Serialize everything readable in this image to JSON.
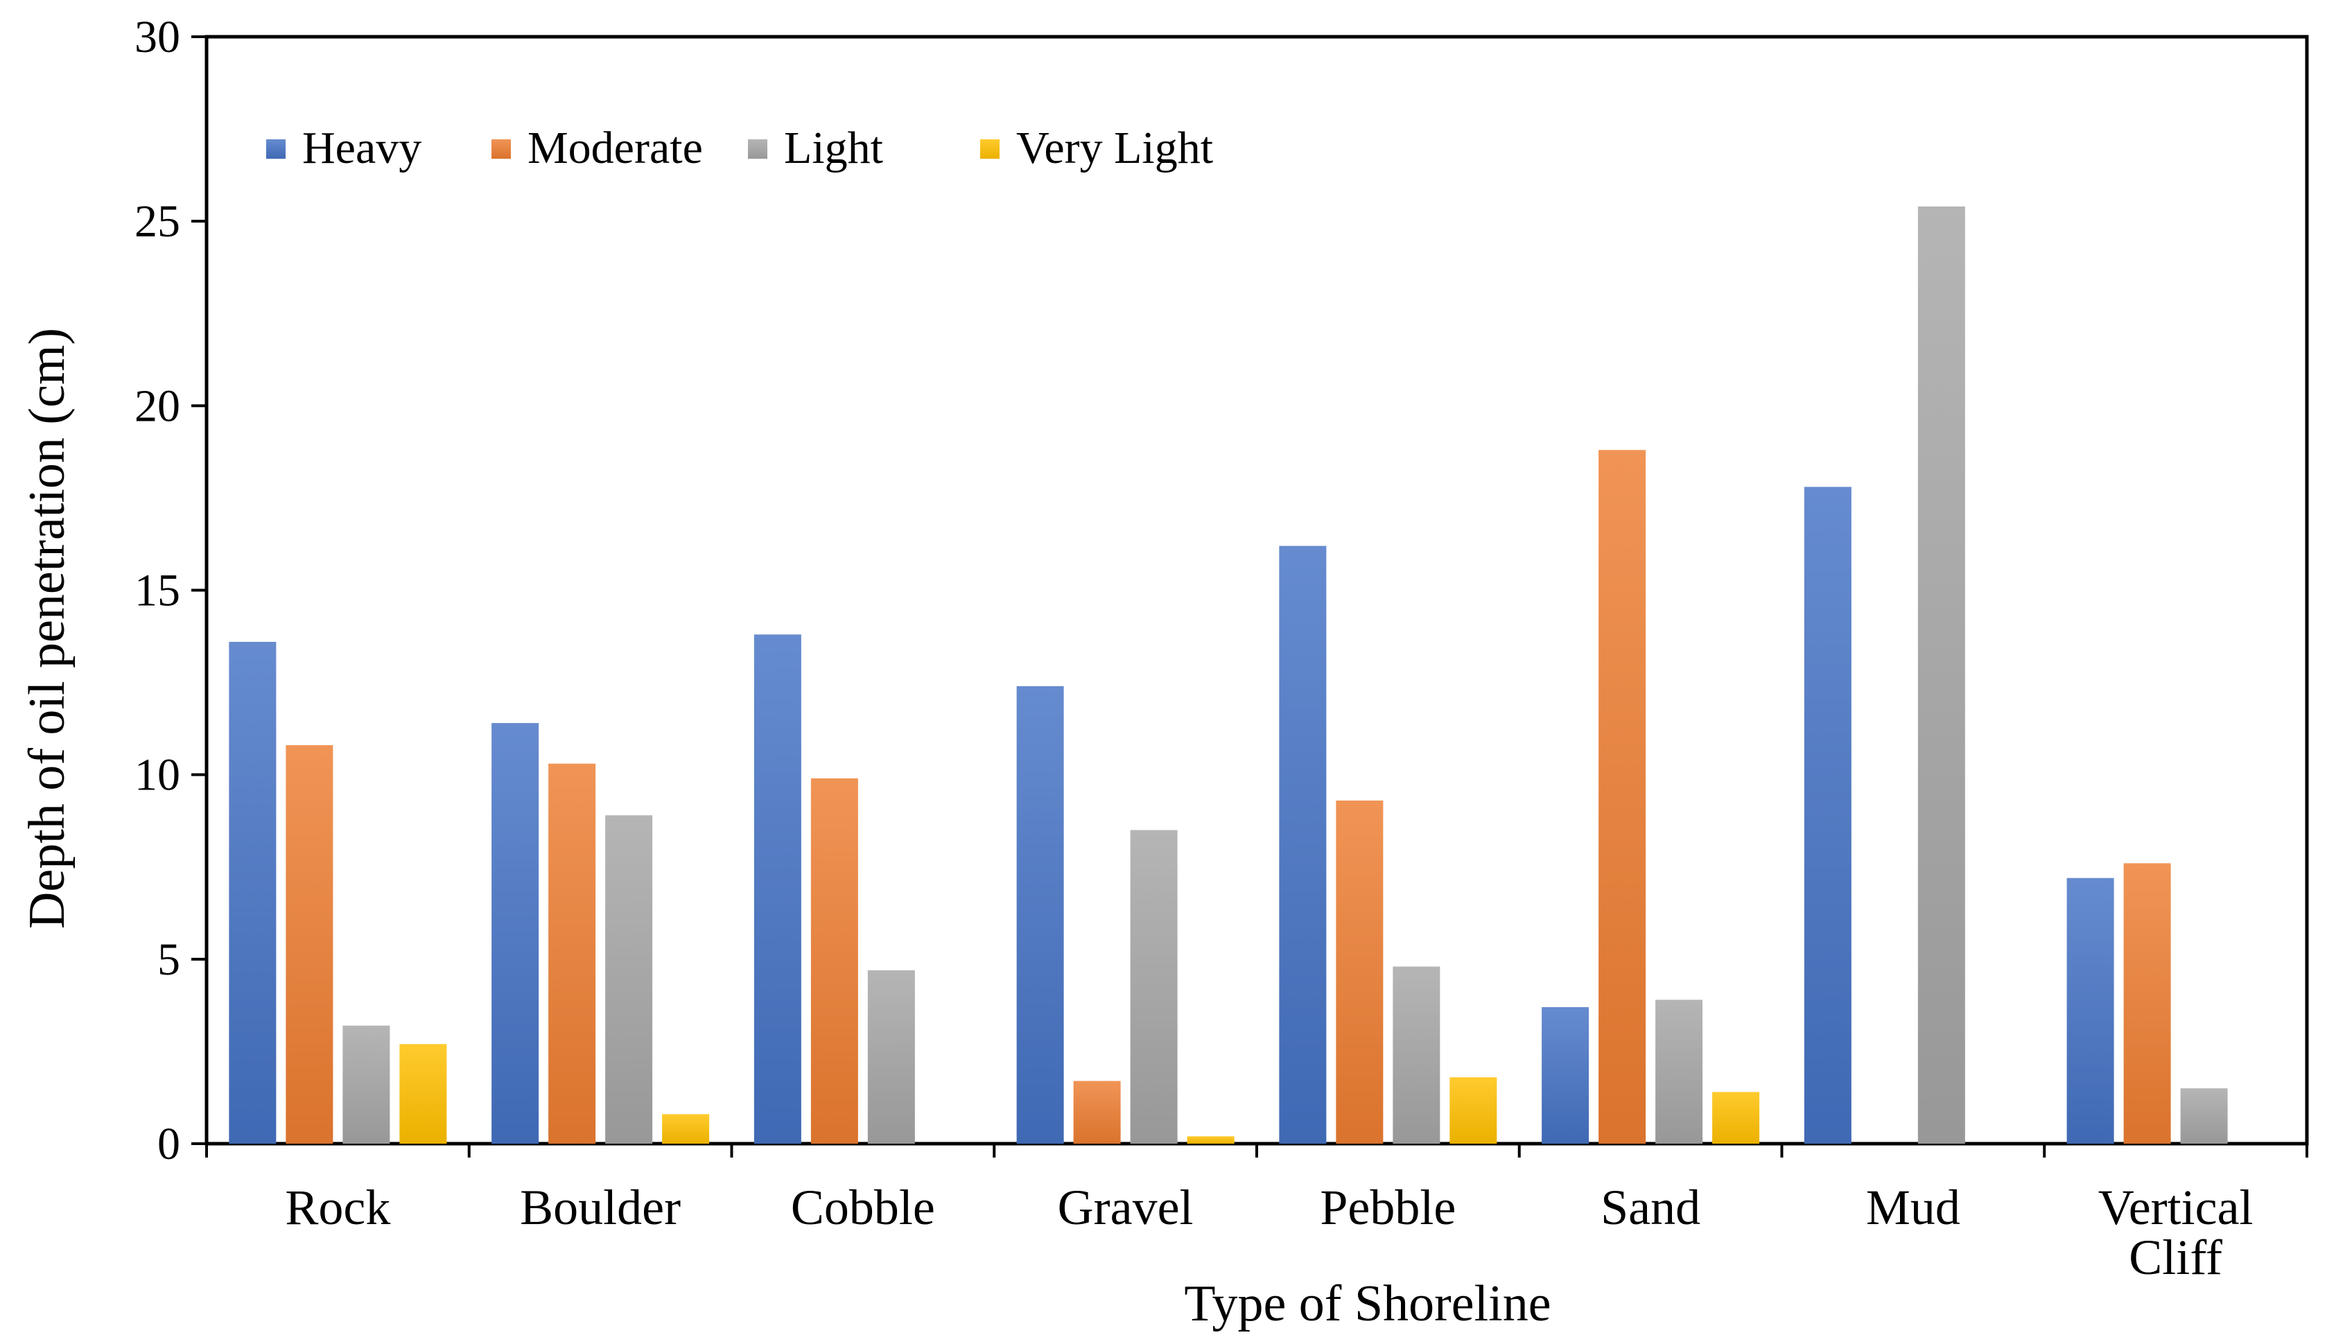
{
  "chart_data": {
    "type": "bar",
    "title": "",
    "xlabel": "Type of Shoreline",
    "ylabel": "Depth of oil penetration (cm)",
    "ylim": [
      0,
      30
    ],
    "yticks": [
      0,
      5,
      10,
      15,
      20,
      25,
      30
    ],
    "grid": false,
    "legend_position": "top-left",
    "categories": [
      [
        "Rock"
      ],
      [
        "Boulder"
      ],
      [
        "Cobble"
      ],
      [
        "Gravel"
      ],
      [
        "Pebble"
      ],
      [
        "Sand"
      ],
      [
        "Mud"
      ],
      [
        "Vertical",
        "Cliff"
      ]
    ],
    "series": [
      {
        "name": "Heavy",
        "color": "#4472C4",
        "values": [
          13.6,
          11.4,
          13.8,
          12.4,
          16.2,
          3.7,
          17.8,
          7.2
        ]
      },
      {
        "name": "Moderate",
        "color": "#ED7D31",
        "values": [
          10.8,
          10.3,
          9.9,
          1.7,
          9.3,
          18.8,
          0,
          7.6
        ]
      },
      {
        "name": "Light",
        "color": "#A5A5A5",
        "values": [
          3.2,
          8.9,
          4.7,
          8.5,
          4.8,
          3.9,
          25.4,
          1.5
        ]
      },
      {
        "name": "Very Light",
        "color": "#FFC000",
        "values": [
          2.7,
          0.8,
          0,
          0.2,
          1.8,
          1.4,
          0,
          0
        ]
      }
    ]
  }
}
